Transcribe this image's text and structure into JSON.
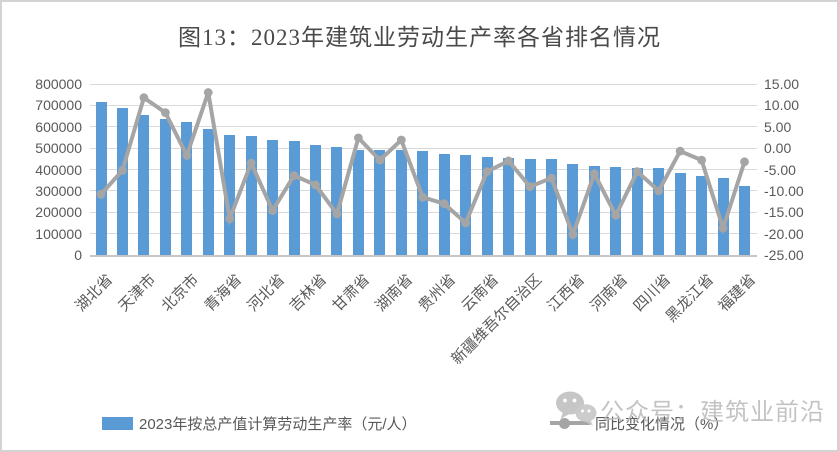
{
  "title": "图13：2023年建筑业劳动生产率各省排名情况",
  "legend_bar": {
    "label": "2023年按总产值计算劳动生产率（元/人）",
    "color": "#5B9BD5"
  },
  "legend_line": {
    "label": "同比变化情况（%）",
    "color": "#A5A5A5"
  },
  "watermark": {
    "icon": "wechat-icon",
    "text": "公众号：建筑业前沿"
  },
  "colors": {
    "bar": "#5B9BD5",
    "line": "#A5A5A5",
    "grid": "#D9D9D9",
    "axis_text": "#595959",
    "title_text": "#4A4A4A",
    "watermark_text": "#B9B9B9"
  },
  "chart_data": {
    "type": "combo",
    "title": "图13：2023年建筑业劳动生产率各省排名情况",
    "bar_count": 31,
    "x_label_interval": 2,
    "x_tick_labels": [
      "湖北省",
      "天津市",
      "北京市",
      "青海省",
      "河北省",
      "吉林省",
      "甘肃省",
      "湖南省",
      "贵州省",
      "云南省",
      "新疆维吾尔自治区",
      "江西省",
      "河南省",
      "四川省",
      "黑龙江省",
      "福建省"
    ],
    "series": [
      {
        "name": "2023年按总产值计算劳动生产率（元/人）",
        "type": "bar",
        "axis": "left",
        "color": "#5B9BD5",
        "values": [
          715000,
          688000,
          653000,
          636000,
          623000,
          590000,
          560000,
          556000,
          537000,
          534000,
          516000,
          505000,
          493000,
          491000,
          489000,
          487000,
          472000,
          469000,
          459000,
          453000,
          451000,
          450000,
          427000,
          416000,
          410000,
          408000,
          405000,
          382000,
          370000,
          358000,
          322000
        ]
      },
      {
        "name": "同比变化情况（%）",
        "type": "line",
        "axis": "right",
        "color": "#A5A5A5",
        "values": [
          -10.8,
          -5.2,
          11.8,
          8.3,
          -1.7,
          13.0,
          -16.5,
          -3.5,
          -14.6,
          -6.4,
          -8.6,
          -15.4,
          2.4,
          -2.8,
          1.9,
          -11.5,
          -13.0,
          -17.5,
          -5.5,
          -3.0,
          -9.0,
          -7.0,
          -20.2,
          -6.0,
          -15.7,
          -5.5,
          -10.0,
          -0.7,
          -2.8,
          -18.7,
          -3.2
        ]
      }
    ],
    "left_axis": {
      "min": 0,
      "max": 800000,
      "step": 100000,
      "tick_labels": [
        "800000",
        "700000",
        "600000",
        "500000",
        "400000",
        "300000",
        "200000",
        "100000",
        "0"
      ]
    },
    "right_axis": {
      "min": -25,
      "max": 15,
      "step": 5,
      "tick_labels": [
        "15.00",
        "10.00",
        "5.00",
        "0.00",
        "-5.00",
        "-10.00",
        "-15.00",
        "-20.00",
        "-25.00"
      ]
    },
    "grid": true,
    "legend_position": "bottom"
  }
}
